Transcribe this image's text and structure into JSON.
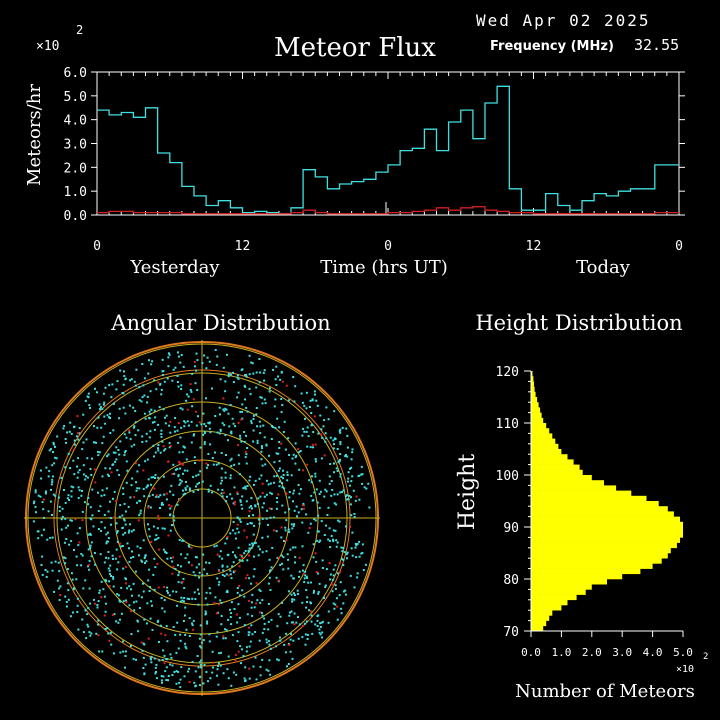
{
  "header": {
    "date": "Wed Apr 02 2025",
    "title": "Meteor Flux",
    "frequency_label": "Frequency (MHz)",
    "frequency_value": "32.55",
    "multiplier_base": "×10",
    "multiplier_exp": "2"
  },
  "colors": {
    "background": "#000000",
    "flux_line": "#40e0e0",
    "flux_low_line": "#d02020",
    "axis": "#ffffff",
    "histogram": "#ffff00",
    "ring_orange": "#e07820",
    "ring_yellow": "#c8b020",
    "dots_cyan": "#40e0e0",
    "dots_red": "#e02020"
  },
  "chart_data": [
    {
      "type": "line",
      "title": "Meteor Flux",
      "ylabel": "Meteors/hr",
      "xlabel": "Time (hrs UT)",
      "y_multiplier": "×10^2",
      "ylim": [
        0,
        6
      ],
      "yticks": [
        "0.0",
        "1.0",
        "2.0",
        "3.0",
        "4.0",
        "5.0",
        "6.0"
      ],
      "xticks": [
        "0",
        "12",
        "0",
        "12",
        "0"
      ],
      "day_labels": [
        "Yesterday",
        "Today"
      ],
      "x_hours": [
        0,
        1,
        2,
        3,
        4,
        5,
        6,
        7,
        8,
        9,
        10,
        11,
        12,
        13,
        14,
        15,
        16,
        17,
        18,
        19,
        20,
        21,
        22,
        23,
        24,
        25,
        26,
        27,
        28,
        29,
        30,
        31,
        32,
        33,
        34,
        35,
        36,
        37,
        38,
        39,
        40,
        41,
        42,
        43,
        44,
        45,
        46,
        47
      ],
      "series": [
        {
          "values": [
            4.4,
            4.2,
            4.3,
            4.1,
            4.5,
            2.6,
            2.2,
            1.2,
            0.8,
            0.4,
            0.6,
            0.3,
            0.1,
            0.15,
            0.1,
            0.05,
            0.3,
            1.9,
            1.6,
            1.1,
            1.3,
            1.4,
            1.5,
            1.8,
            2.1,
            2.7,
            2.8,
            3.6,
            2.7,
            3.9,
            4.4,
            3.2,
            4.7,
            5.4,
            1.1,
            0.2,
            0.2,
            0.9,
            0.4,
            0.2,
            0.6,
            0.9,
            0.8,
            1.0,
            1.1,
            1.1,
            2.1,
            2.1
          ],
          "color": "#40e0e0"
        },
        {
          "values": [
            0.1,
            0.15,
            0.15,
            0.1,
            0.1,
            0.1,
            0.1,
            0.05,
            0.05,
            0.05,
            0.05,
            0.05,
            0.05,
            0.05,
            0.05,
            0.05,
            0.1,
            0.2,
            0.1,
            0.05,
            0.05,
            0.05,
            0.05,
            0.05,
            0.1,
            0.1,
            0.15,
            0.2,
            0.3,
            0.2,
            0.3,
            0.35,
            0.2,
            0.15,
            0.1,
            0.1,
            0.05,
            0.05,
            0.05,
            0.05,
            0.05,
            0.05,
            0.05,
            0.05,
            0.05,
            0.05,
            0.1,
            0.1
          ],
          "color": "#d02020"
        }
      ]
    },
    {
      "type": "scatter",
      "title": "Angular Distribution",
      "rings": 6
    },
    {
      "type": "bar",
      "orientation": "horizontal",
      "title": "Height Distribution",
      "ylabel": "Height",
      "xlabel": "Number of Meteors",
      "x_multiplier": "×10^2",
      "xlim": [
        0,
        5
      ],
      "ylim": [
        70,
        120
      ],
      "xticks": [
        "0.0",
        "1.0",
        "2.0",
        "3.0",
        "4.0",
        "5.0"
      ],
      "yticks": [
        "70",
        "80",
        "90",
        "100",
        "110",
        "120"
      ],
      "heights": [
        70,
        71,
        72,
        73,
        74,
        75,
        76,
        77,
        78,
        79,
        80,
        81,
        82,
        83,
        84,
        85,
        86,
        87,
        88,
        89,
        90,
        91,
        92,
        93,
        94,
        95,
        96,
        97,
        98,
        99,
        100,
        101,
        102,
        103,
        104,
        105,
        106,
        107,
        108,
        109,
        110,
        111,
        112,
        113,
        114,
        115,
        116,
        117,
        118,
        119
      ],
      "values": [
        0.4,
        0.5,
        0.6,
        0.7,
        1.0,
        1.2,
        1.5,
        1.8,
        2.0,
        2.5,
        3.0,
        3.6,
        4.0,
        4.3,
        4.5,
        4.6,
        4.8,
        4.9,
        5.0,
        5.0,
        5.0,
        4.9,
        4.7,
        4.5,
        4.2,
        3.8,
        3.3,
        2.8,
        2.4,
        2.0,
        1.7,
        1.6,
        1.4,
        1.2,
        1.0,
        0.9,
        0.8,
        0.7,
        0.6,
        0.5,
        0.4,
        0.35,
        0.3,
        0.25,
        0.2,
        0.15,
        0.12,
        0.1,
        0.08,
        0.05
      ]
    }
  ]
}
